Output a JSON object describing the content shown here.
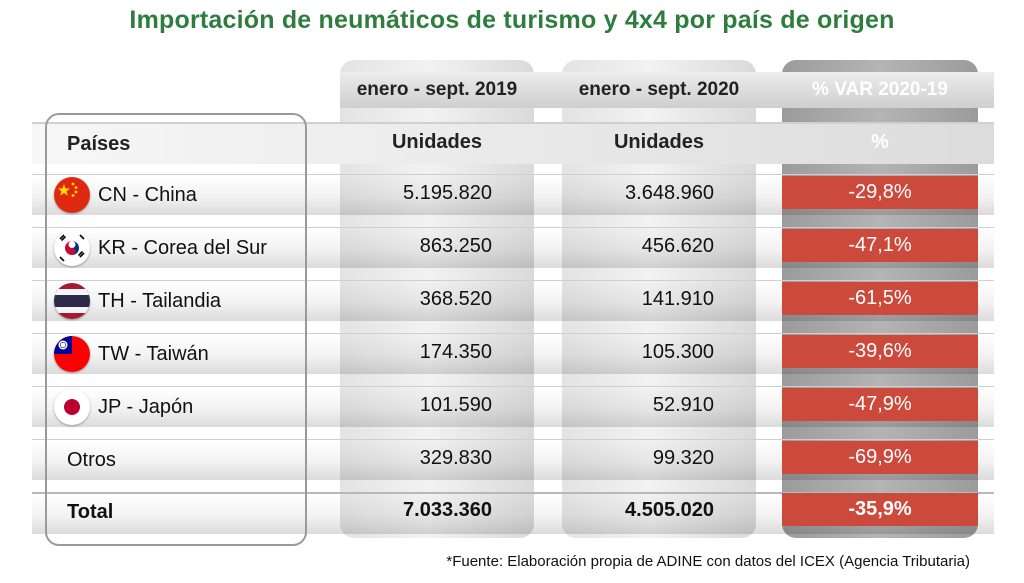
{
  "title": "Importación de neumáticos de turismo y 4x4 por país de origen",
  "header": {
    "period_2019": "enero - sept. 2019",
    "period_2020": "enero - sept. 2020",
    "var_label": "% VAR 2020-19",
    "countries_label": "Países",
    "units_2019": "Unidades",
    "units_2020": "Unidades",
    "pct_unit": "%"
  },
  "chart_data": {
    "type": "table",
    "title": "Importación de neumáticos de turismo y 4x4 por país de origen",
    "columns": [
      "Países",
      "enero - sept. 2019 (Unidades)",
      "enero - sept. 2020 (Unidades)",
      "% VAR 2020-19"
    ],
    "rows": [
      {
        "country": "CN - China",
        "flag": "cn-flag-icon",
        "v2019": "5.195.820",
        "v2020": "3.648.960",
        "var": "-29,8%"
      },
      {
        "country": "KR - Corea del Sur",
        "flag": "kr-flag-icon",
        "v2019": "863.250",
        "v2020": "456.620",
        "var": "-47,1%"
      },
      {
        "country": "TH - Tailandia",
        "flag": "th-flag-icon",
        "v2019": "368.520",
        "v2020": "141.910",
        "var": "-61,5%"
      },
      {
        "country": "TW - Taiwán",
        "flag": "tw-flag-icon",
        "v2019": "174.350",
        "v2020": "105.300",
        "var": "-39,6%"
      },
      {
        "country": "JP - Japón",
        "flag": "jp-flag-icon",
        "v2019": "101.590",
        "v2020": "52.910",
        "var": "-47,9%"
      },
      {
        "country": "Otros",
        "flag": "",
        "v2019": "329.830",
        "v2020": "99.320",
        "var": "-69,9%"
      }
    ],
    "total": {
      "label": "Total",
      "v2019": "7.033.360",
      "v2020": "4.505.020",
      "var": "-35,9%"
    }
  },
  "colors": {
    "title": "#2e7d3e",
    "negative_var": "#cc4a3c"
  },
  "footnote": "*Fuente: Elaboración propia de ADINE con datos del ICEX (Agencia Tributaria)"
}
